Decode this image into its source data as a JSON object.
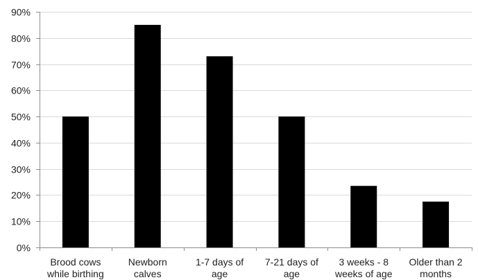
{
  "chart_data": {
    "type": "bar",
    "categories": [
      [
        "Brood cows",
        "while birthing"
      ],
      [
        "Newborn",
        "calves"
      ],
      [
        "1-7 days of",
        "age"
      ],
      [
        "7-21 days of",
        "age"
      ],
      [
        "3 weeks - 8",
        "weeks of age"
      ],
      [
        "Older than 2",
        "months"
      ]
    ],
    "values": [
      0.5,
      0.85,
      0.73,
      0.5,
      0.235,
      0.175
    ],
    "ylim": [
      0,
      0.9
    ],
    "yticks": [
      "0%",
      "10%",
      "20%",
      "30%",
      "40%",
      "50%",
      "60%",
      "70%",
      "80%",
      "90%"
    ],
    "title": "",
    "xlabel": "",
    "ylabel": "",
    "bar_color": "#000000",
    "grid": true,
    "legend": false
  }
}
